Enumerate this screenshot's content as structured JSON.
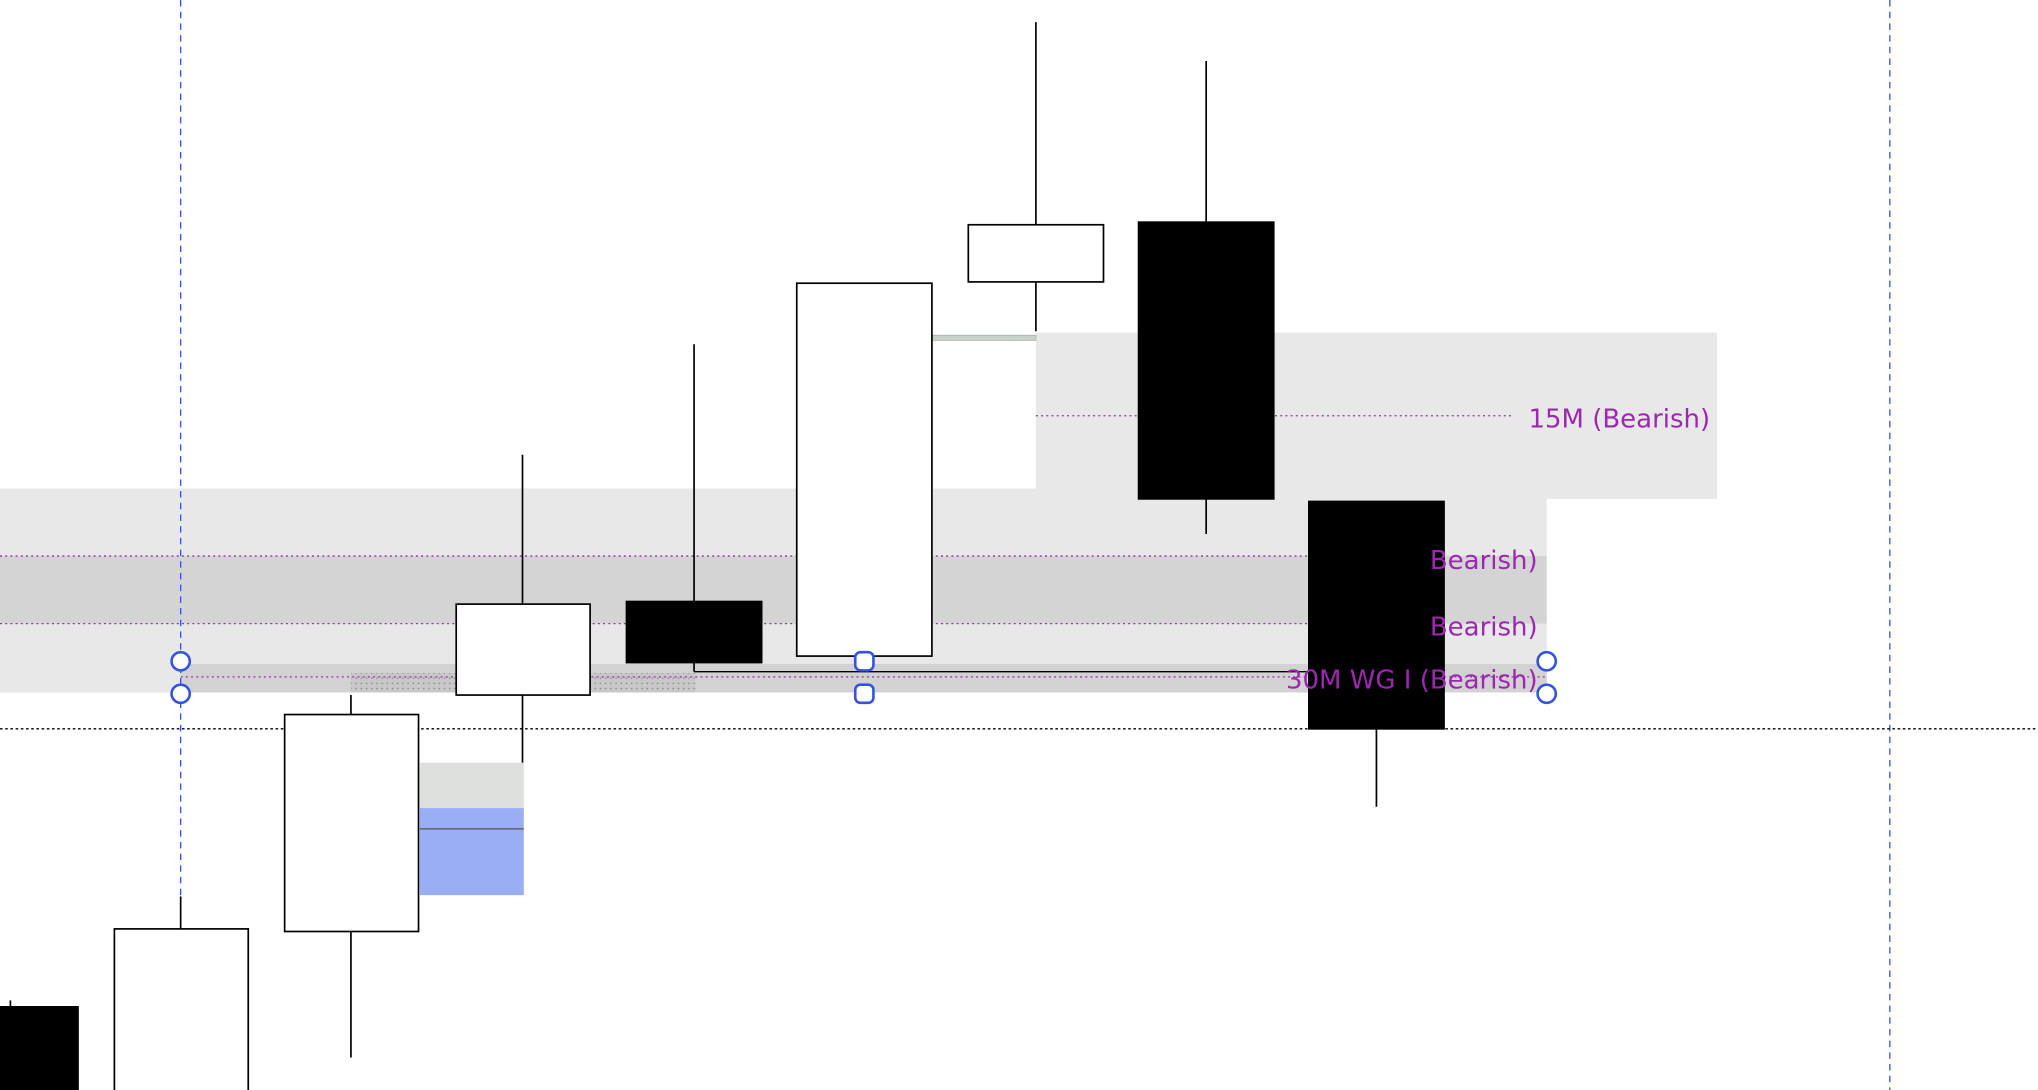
{
  "labels": [
    "15M (Bearish)",
    "Bearish)",
    "Bearish)",
    "30M WG I (Bearish)"
  ]
}
